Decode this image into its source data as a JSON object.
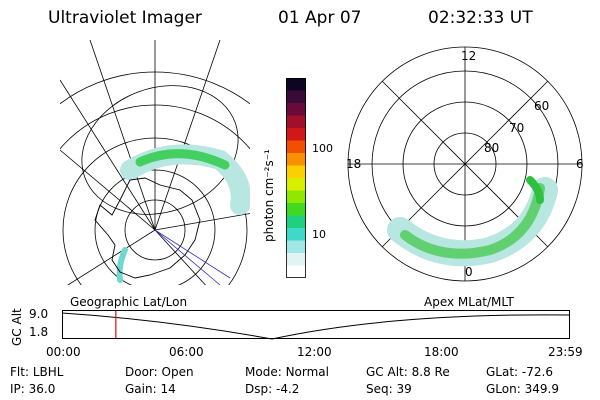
{
  "header": {
    "instrument": "Ultraviolet Imager",
    "date": "01 Apr 07",
    "time": "02:32:33 UT"
  },
  "left_panel": {
    "label": "Geographic Lat/Lon"
  },
  "right_panel": {
    "label": "Apex MLat/MLT",
    "mlt_labels": {
      "top": "12",
      "left": "18",
      "right": "6",
      "bottom": "0"
    },
    "lat_labels": [
      "60",
      "70",
      "80"
    ]
  },
  "colorbar": {
    "unit_label": "photon cm⁻²s⁻¹",
    "tick_labels": [
      "100",
      "10"
    ],
    "colors": [
      "#0d0521",
      "#3a0a3a",
      "#6b0a3a",
      "#a0102a",
      "#d01818",
      "#f05000",
      "#f89000",
      "#fcd000",
      "#d8f000",
      "#90e800",
      "#40d820",
      "#20d080",
      "#40d8c8",
      "#a0e8e8",
      "#e0f4f4",
      "#ffffff"
    ]
  },
  "timeline": {
    "y_axis_label": "GC Alt",
    "y_ticks": [
      "9.0",
      "1.8"
    ],
    "x_ticks": [
      "00:00",
      "06:00",
      "12:00",
      "18:00",
      "23:59"
    ],
    "cursor_time_fraction": 0.106
  },
  "status": {
    "row1": [
      {
        "key": "Flt:",
        "value": "LBHL"
      },
      {
        "key": "Door:",
        "value": "Open"
      },
      {
        "key": "Mode:",
        "value": "Normal"
      },
      {
        "key": "GC Alt:",
        "value": "8.8 Re"
      },
      {
        "key": "GLat:",
        "value": "-72.6"
      }
    ],
    "row2": [
      {
        "key": "IP:",
        "value": "36.0"
      },
      {
        "key": "Gain:",
        "value": "14"
      },
      {
        "key": "Dsp:",
        "value": "-4.2"
      },
      {
        "key": "Seq:",
        "value": "39"
      },
      {
        "key": "GLon:",
        "value": "349.9"
      }
    ]
  }
}
